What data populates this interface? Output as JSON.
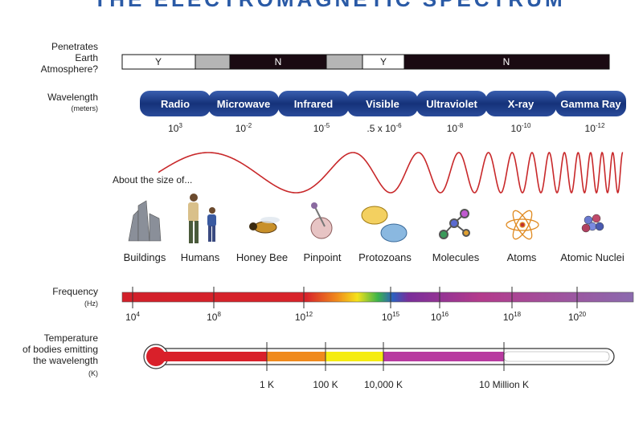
{
  "title": "THE ELECTROMAGNETIC SPECTRUM",
  "atmosphere": {
    "label": [
      "Penetrates",
      "Earth",
      "Atmosphere?"
    ],
    "answers": [
      "Y",
      "N",
      "Y",
      "N"
    ]
  },
  "wavelength": {
    "label": "Wavelength",
    "unit": "(meters)",
    "bands": [
      {
        "name": "Radio",
        "base": "10",
        "exp": "3"
      },
      {
        "name": "Microwave",
        "base": "10",
        "exp": "-2"
      },
      {
        "name": "Infrared",
        "base": "10",
        "exp": "-5"
      },
      {
        "name": "Visible",
        "base": ".5 x 10",
        "exp": "-6"
      },
      {
        "name": "Ultraviolet",
        "base": "10",
        "exp": "-8"
      },
      {
        "name": "X-ray",
        "base": "10",
        "exp": "-10"
      },
      {
        "name": "Gamma Ray",
        "base": "10",
        "exp": "-12"
      }
    ]
  },
  "size": {
    "label": "About the size of...",
    "objects": [
      "Buildings",
      "Humans",
      "Honey Bee",
      "Pinpoint",
      "Protozoans",
      "Molecules",
      "Atoms",
      "Atomic Nuclei"
    ]
  },
  "frequency": {
    "label": "Frequency",
    "unit": "(Hz)",
    "ticks": [
      {
        "base": "10",
        "exp": "4"
      },
      {
        "base": "10",
        "exp": "8"
      },
      {
        "base": "10",
        "exp": "12"
      },
      {
        "base": "10",
        "exp": "15"
      },
      {
        "base": "10",
        "exp": "16"
      },
      {
        "base": "10",
        "exp": "18"
      },
      {
        "base": "10",
        "exp": "20"
      }
    ]
  },
  "temperature": {
    "label": [
      "Temperature",
      "of bodies emitting",
      "the wavelength"
    ],
    "unit": "(K)",
    "ticks": [
      "1 K",
      "100 K",
      "10,000 K",
      "10 Million K"
    ]
  }
}
